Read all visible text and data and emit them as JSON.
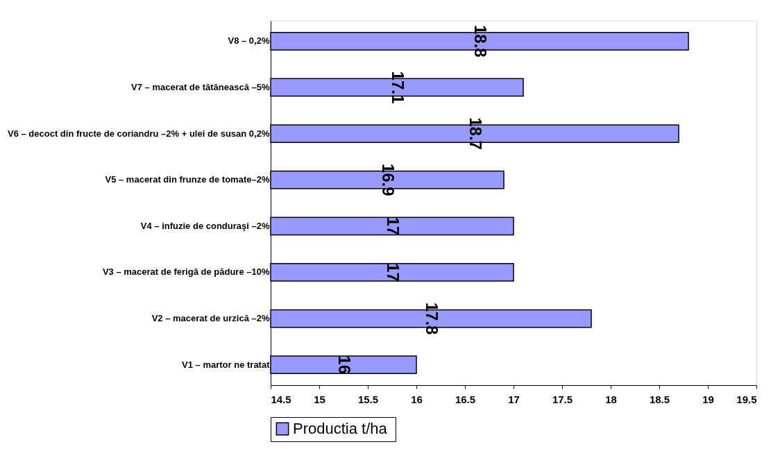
{
  "chart_data": {
    "type": "bar",
    "orientation": "horizontal",
    "categories": [
      "V8 – 0,2%",
      "V7 – macerat de tătănească –5%",
      "V6 – decoct din fructe de coriandru –2% + ulei de susan 0,2%",
      "V5 – macerat din frunze de tomate–2%",
      "V4 – infuzie de conduraşi –2%",
      "V3 – macerat de ferigă de pădure –10%",
      "V2 – macerat de urzică –2%",
      "V1 – martor ne tratat"
    ],
    "series": [
      {
        "name": "Productia  t/ha",
        "color": "#9999ff",
        "values": [
          18.8,
          17.1,
          18.7,
          16.9,
          17,
          17,
          17.8,
          16
        ]
      }
    ],
    "xlim": [
      14.5,
      19.5
    ],
    "xticks": [
      14.5,
      15,
      15.5,
      16,
      16.5,
      17,
      17.5,
      18,
      18.5,
      19,
      19.5
    ],
    "data_labels": true,
    "grid": false,
    "legend": "bottom"
  }
}
